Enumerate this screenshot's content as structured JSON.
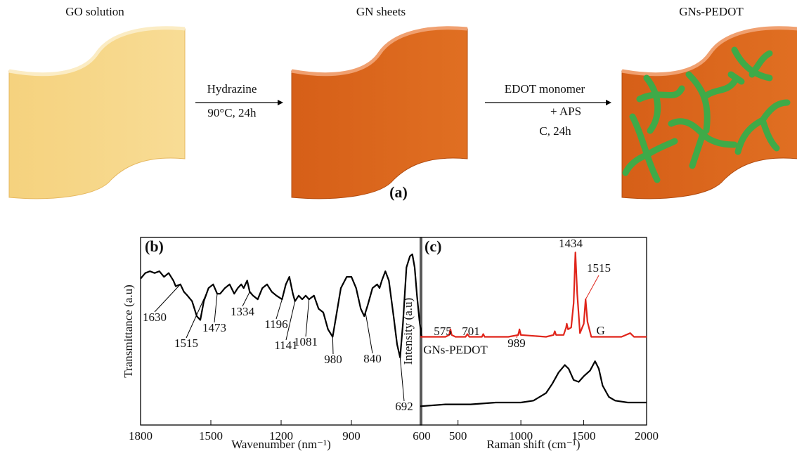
{
  "diagram": {
    "panel_label": "(a)",
    "steps": [
      "GO solution",
      "GN sheets",
      "GNs-PEDOT"
    ],
    "arrow1": {
      "top": "Hydrazine",
      "bottom": "90°C, 24h"
    },
    "arrow2": {
      "top": "EDOT monomer",
      "middle": "+ APS",
      "bottom": "C, 24h"
    }
  },
  "chart_data": [
    {
      "type": "line",
      "panel_label": "(b)",
      "x_label": "Wavenumber (nm⁻¹)",
      "y_label": "Transmittance (a.u)",
      "xlim": [
        1800,
        600
      ],
      "xticks": [
        1800,
        1500,
        1200,
        900,
        600
      ],
      "ylim": [
        0,
        100
      ],
      "series": [
        {
          "color": "#000000",
          "x": [
            1800,
            1780,
            1760,
            1740,
            1720,
            1700,
            1680,
            1660,
            1650,
            1630,
            1615,
            1600,
            1580,
            1560,
            1545,
            1530,
            1510,
            1490,
            1473,
            1460,
            1440,
            1420,
            1400,
            1385,
            1370,
            1360,
            1345,
            1334,
            1320,
            1300,
            1280,
            1260,
            1240,
            1220,
            1196,
            1180,
            1165,
            1150,
            1141,
            1125,
            1110,
            1095,
            1081,
            1060,
            1040,
            1020,
            1000,
            980,
            965,
            945,
            920,
            900,
            880,
            860,
            845,
            830,
            810,
            790,
            780,
            770,
            755,
            740,
            720,
            705,
            692,
            680,
            665,
            650,
            640,
            630,
            620,
            610,
            600
          ],
          "values": [
            78,
            81,
            82,
            81,
            82,
            79,
            81,
            77,
            74,
            75,
            71,
            69,
            66,
            58,
            56,
            66,
            73,
            75,
            70,
            70,
            73,
            75,
            70,
            73,
            75,
            73,
            77,
            71,
            69,
            67,
            73,
            75,
            71,
            69,
            67,
            75,
            79,
            70,
            66,
            69,
            67,
            69,
            67,
            69,
            62,
            60,
            51,
            47,
            58,
            73,
            79,
            79,
            73,
            62,
            58,
            64,
            73,
            75,
            73,
            77,
            82,
            77,
            58,
            43,
            36,
            54,
            84,
            90,
            91,
            84,
            69,
            56,
            47
          ]
        }
      ],
      "peak_labels": [
        1630,
        1515,
        1473,
        1334,
        1196,
        1141,
        1081,
        980,
        840,
        692
      ]
    },
    {
      "type": "line",
      "panel_label": "(c)",
      "x_label": "Raman shift (cm⁻¹)",
      "y_label": "Intensity (a.u)",
      "xlim": [
        200,
        2000
      ],
      "xticks": [
        500,
        1000,
        1500,
        2000
      ],
      "ylim": [
        0,
        100
      ],
      "series": [
        {
          "name": "GNs-PEDOT",
          "color": "#e0251b",
          "x": [
            200,
            400,
            430,
            440,
            450,
            480,
            560,
            575,
            590,
            690,
            701,
            712,
            900,
            980,
            989,
            1000,
            1200,
            1260,
            1270,
            1280,
            1340,
            1360,
            1365,
            1375,
            1400,
            1420,
            1434,
            1448,
            1470,
            1500,
            1515,
            1530,
            1560,
            1800,
            1870,
            1900,
            2000
          ],
          "values": [
            47,
            47,
            48,
            51,
            48,
            47,
            47,
            48.5,
            47,
            47,
            48.5,
            47,
            47,
            48,
            51,
            48,
            47,
            48,
            50,
            48,
            48,
            52,
            54,
            51,
            52,
            65,
            92,
            70,
            49,
            54,
            67,
            55,
            47,
            47,
            49,
            47,
            47
          ]
        },
        {
          "color": "#000000",
          "x": [
            200,
            400,
            600,
            800,
            1000,
            1100,
            1200,
            1250,
            1300,
            1350,
            1380,
            1420,
            1460,
            1500,
            1550,
            1590,
            1620,
            1650,
            1700,
            1750,
            1850,
            2000
          ],
          "values": [
            10,
            11,
            11,
            12,
            12,
            13,
            17,
            22,
            28,
            32,
            30,
            24,
            23,
            26,
            29,
            34,
            30,
            21,
            15,
            13,
            12,
            12
          ]
        }
      ],
      "peak_labels": [
        575,
        701,
        989,
        1434,
        1515
      ],
      "annotations": [
        "G"
      ]
    }
  ]
}
